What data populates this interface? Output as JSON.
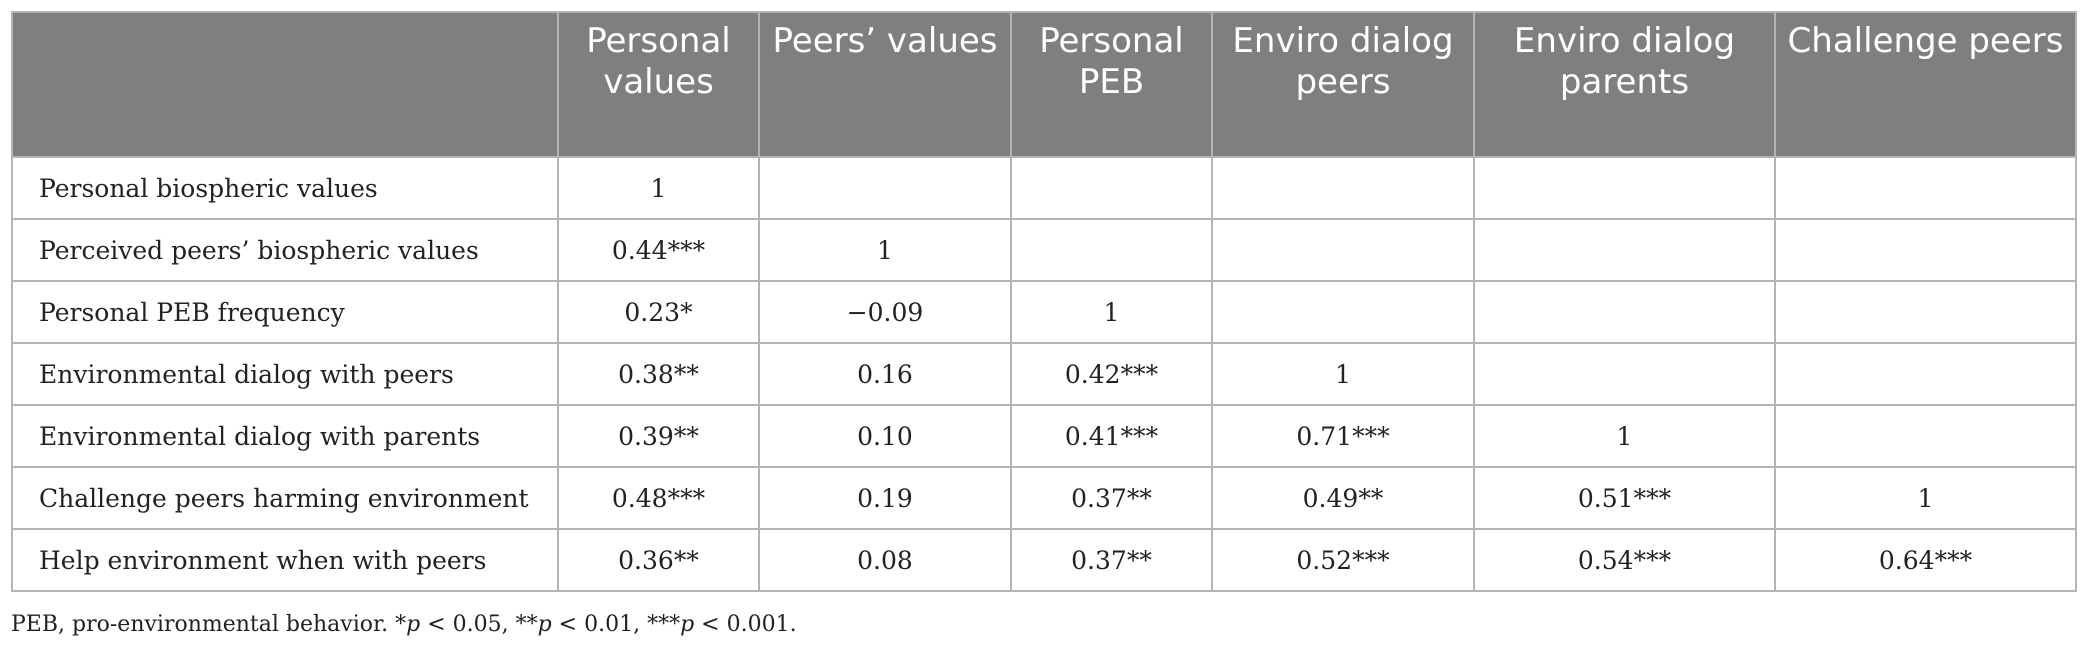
{
  "table": {
    "headers": [
      "",
      "Personal values",
      "Peers’ values",
      "Personal PEB",
      "Enviro dialog peers",
      "Enviro dialog parents",
      "Challenge peers"
    ],
    "rows": [
      {
        "label": "Personal biospheric values",
        "cells": [
          "1",
          "",
          "",
          "",
          "",
          ""
        ]
      },
      {
        "label": "Perceived peers’ biospheric values",
        "cells": [
          "0.44***",
          "1",
          "",
          "",
          "",
          ""
        ]
      },
      {
        "label": "Personal PEB frequency",
        "cells": [
          "0.23*",
          "−0.09",
          "1",
          "",
          "",
          ""
        ]
      },
      {
        "label": "Environmental dialog with peers",
        "cells": [
          "0.38**",
          "0.16",
          "0.42***",
          "1",
          "",
          ""
        ]
      },
      {
        "label": "Environmental dialog with parents",
        "cells": [
          "0.39**",
          "0.10",
          "0.41***",
          "0.71***",
          "1",
          ""
        ]
      },
      {
        "label": "Challenge peers harming environment",
        "cells": [
          "0.48***",
          "0.19",
          "0.37**",
          "0.49**",
          "0.51***",
          "1"
        ]
      },
      {
        "label": "Help environment when with peers",
        "cells": [
          "0.36**",
          "0.08",
          "0.37**",
          "0.52***",
          "0.54***",
          "0.64***"
        ]
      }
    ]
  },
  "footnote": {
    "abbrev": "PEB, pro-environmental behavior. ",
    "p1_star": "*",
    "p1_sym": "p",
    "p1_rest": " < 0.05, ",
    "p2_star": "**",
    "p2_sym": "p",
    "p2_rest": " < 0.01, ",
    "p3_star": "***",
    "p3_sym": "p",
    "p3_rest": " < 0.001."
  },
  "colors": {
    "header_bg": "#7f7f7f",
    "header_text": "#ffffff",
    "grid": "#b4b4b4",
    "body_text": "#222222"
  }
}
